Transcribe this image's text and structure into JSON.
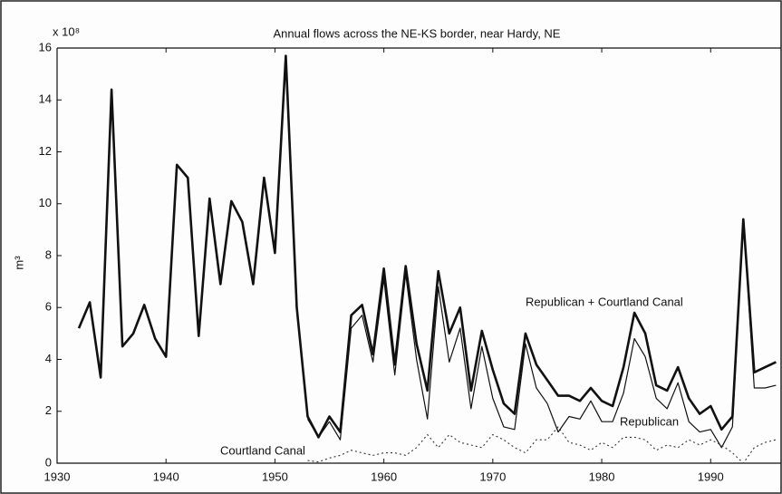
{
  "chart_data": {
    "type": "line",
    "title": "Annual flows across the NE-KS border, near Hardy, NE",
    "y_label": "m³",
    "y_multiplier": "x 10⁸",
    "x": [
      1932,
      1933,
      1934,
      1935,
      1936,
      1937,
      1938,
      1939,
      1940,
      1941,
      1942,
      1943,
      1944,
      1945,
      1946,
      1947,
      1948,
      1949,
      1950,
      1951,
      1952,
      1953,
      1954,
      1955,
      1956,
      1957,
      1958,
      1959,
      1960,
      1961,
      1962,
      1963,
      1964,
      1965,
      1966,
      1967,
      1968,
      1969,
      1970,
      1971,
      1972,
      1973,
      1974,
      1975,
      1976,
      1977,
      1978,
      1979,
      1980,
      1981,
      1982,
      1983,
      1984,
      1985,
      1986,
      1987,
      1988,
      1989,
      1990,
      1991,
      1992,
      1993,
      1994,
      1995,
      1996
    ],
    "series": [
      {
        "name": "Republican + Courtland Canal",
        "color": "#111111",
        "values": [
          5.2,
          6.2,
          3.3,
          14.4,
          4.5,
          5.0,
          6.1,
          4.8,
          4.1,
          11.5,
          11.0,
          4.9,
          10.2,
          6.9,
          10.1,
          9.3,
          6.9,
          11.0,
          8.1,
          15.7,
          6.0,
          1.8,
          1.0,
          1.8,
          1.2,
          5.7,
          6.1,
          4.2,
          7.5,
          3.8,
          7.6,
          4.6,
          2.8,
          7.4,
          5.0,
          6.0,
          2.8,
          5.1,
          3.6,
          2.3,
          1.9,
          5.0,
          3.8,
          3.2,
          2.6,
          2.6,
          2.4,
          2.9,
          2.4,
          2.2,
          3.7,
          5.8,
          5.0,
          3.0,
          2.8,
          3.7,
          2.5,
          1.9,
          2.2,
          1.3,
          1.8,
          9.4,
          3.5,
          3.7,
          3.9
        ]
      },
      {
        "name": "Republican",
        "color": "#111111",
        "values": [
          null,
          null,
          null,
          null,
          null,
          null,
          null,
          null,
          null,
          null,
          null,
          null,
          null,
          null,
          null,
          null,
          null,
          null,
          null,
          null,
          null,
          1.7,
          1.0,
          1.6,
          0.9,
          5.2,
          5.7,
          3.9,
          7.1,
          3.4,
          7.3,
          4.0,
          1.7,
          6.8,
          3.9,
          5.2,
          2.1,
          4.5,
          2.5,
          1.4,
          1.3,
          4.6,
          2.9,
          2.3,
          1.2,
          1.8,
          1.7,
          2.4,
          1.6,
          1.6,
          2.7,
          4.8,
          4.1,
          2.5,
          2.1,
          3.1,
          1.6,
          1.2,
          1.3,
          0.6,
          1.4,
          9.4,
          2.9,
          2.9,
          3.0
        ]
      },
      {
        "name": "Courtland Canal",
        "color": "#333333",
        "values": [
          null,
          null,
          null,
          null,
          null,
          null,
          null,
          null,
          null,
          null,
          null,
          null,
          null,
          null,
          null,
          null,
          null,
          null,
          null,
          null,
          null,
          0.1,
          0.05,
          0.2,
          0.3,
          0.5,
          0.4,
          0.3,
          0.4,
          0.4,
          0.3,
          0.6,
          1.1,
          0.6,
          1.1,
          0.8,
          0.7,
          0.6,
          1.1,
          0.9,
          0.6,
          0.4,
          0.9,
          0.9,
          1.4,
          0.8,
          0.7,
          0.5,
          0.8,
          0.6,
          1.0,
          1.0,
          0.9,
          0.5,
          0.7,
          0.6,
          0.9,
          0.7,
          0.9,
          0.7,
          0.4,
          0.0,
          0.6,
          0.8,
          0.9
        ]
      }
    ],
    "xlim": [
      1930,
      1996.3
    ],
    "ylim": [
      0,
      16
    ],
    "xticks": [
      1930,
      1940,
      1950,
      1960,
      1970,
      1980,
      1990
    ],
    "yticks": [
      0,
      2,
      4,
      6,
      8,
      10,
      12,
      14,
      16
    ]
  }
}
